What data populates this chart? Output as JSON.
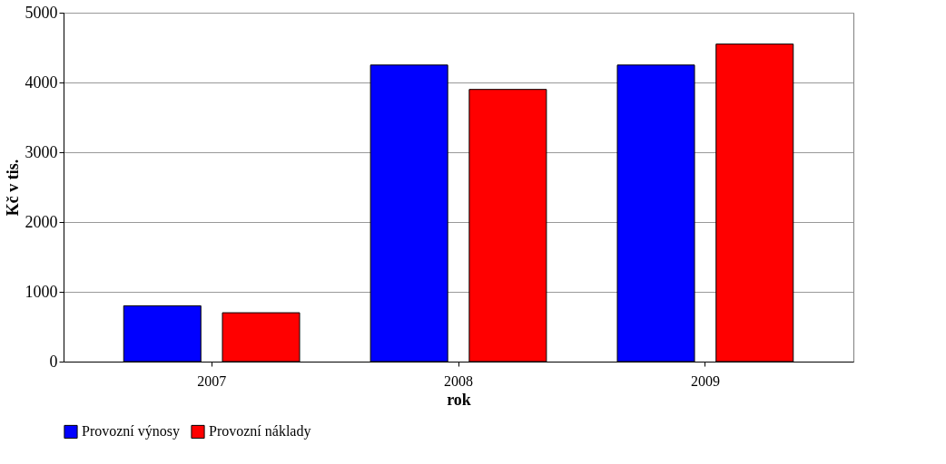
{
  "chart_data": {
    "type": "bar",
    "xlabel": "rok",
    "ylabel": "Kč v tis.",
    "categories": [
      "2007",
      "2008",
      "2009"
    ],
    "series": [
      {
        "name": "Provozní výnosy",
        "color": "#0000ff",
        "values": [
          800,
          4250,
          4250
        ]
      },
      {
        "name": "Provozní náklady",
        "color": "#ff0000",
        "values": [
          700,
          3900,
          4550
        ]
      }
    ],
    "ylim": [
      0,
      5000
    ],
    "yticks": [
      0,
      1000,
      2000,
      3000,
      4000,
      5000
    ],
    "grid": "y",
    "legend": "bottom"
  }
}
